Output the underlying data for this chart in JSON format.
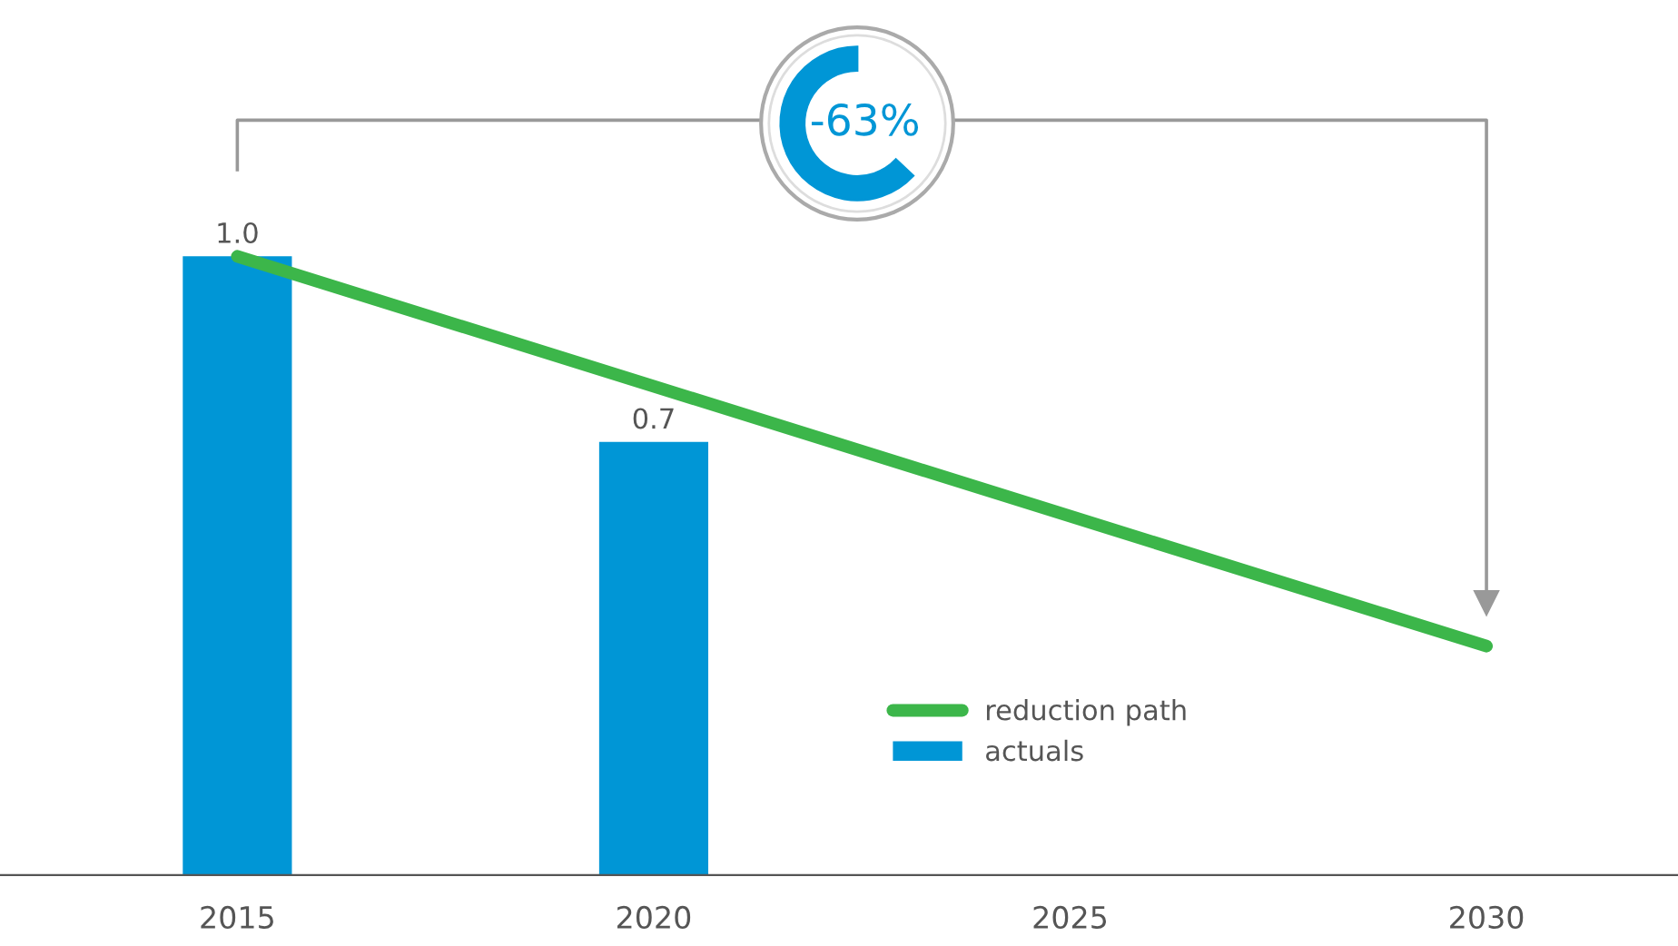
{
  "chart_data": {
    "type": "bar",
    "categories": [
      "2015",
      "2020",
      "2025",
      "2030"
    ],
    "series": [
      {
        "name": "actuals",
        "color": "#0096d6",
        "values": [
          1.0,
          0.7,
          null,
          null
        ],
        "value_labels": [
          "1.0",
          "0.7",
          null,
          null
        ]
      },
      {
        "name": "reduction path",
        "type": "line",
        "color": "#3cb64a",
        "values": [
          1.0,
          null,
          null,
          0.37
        ]
      }
    ],
    "annotations": [
      "-63%"
    ],
    "legend": "bottom",
    "grid": false
  }
}
